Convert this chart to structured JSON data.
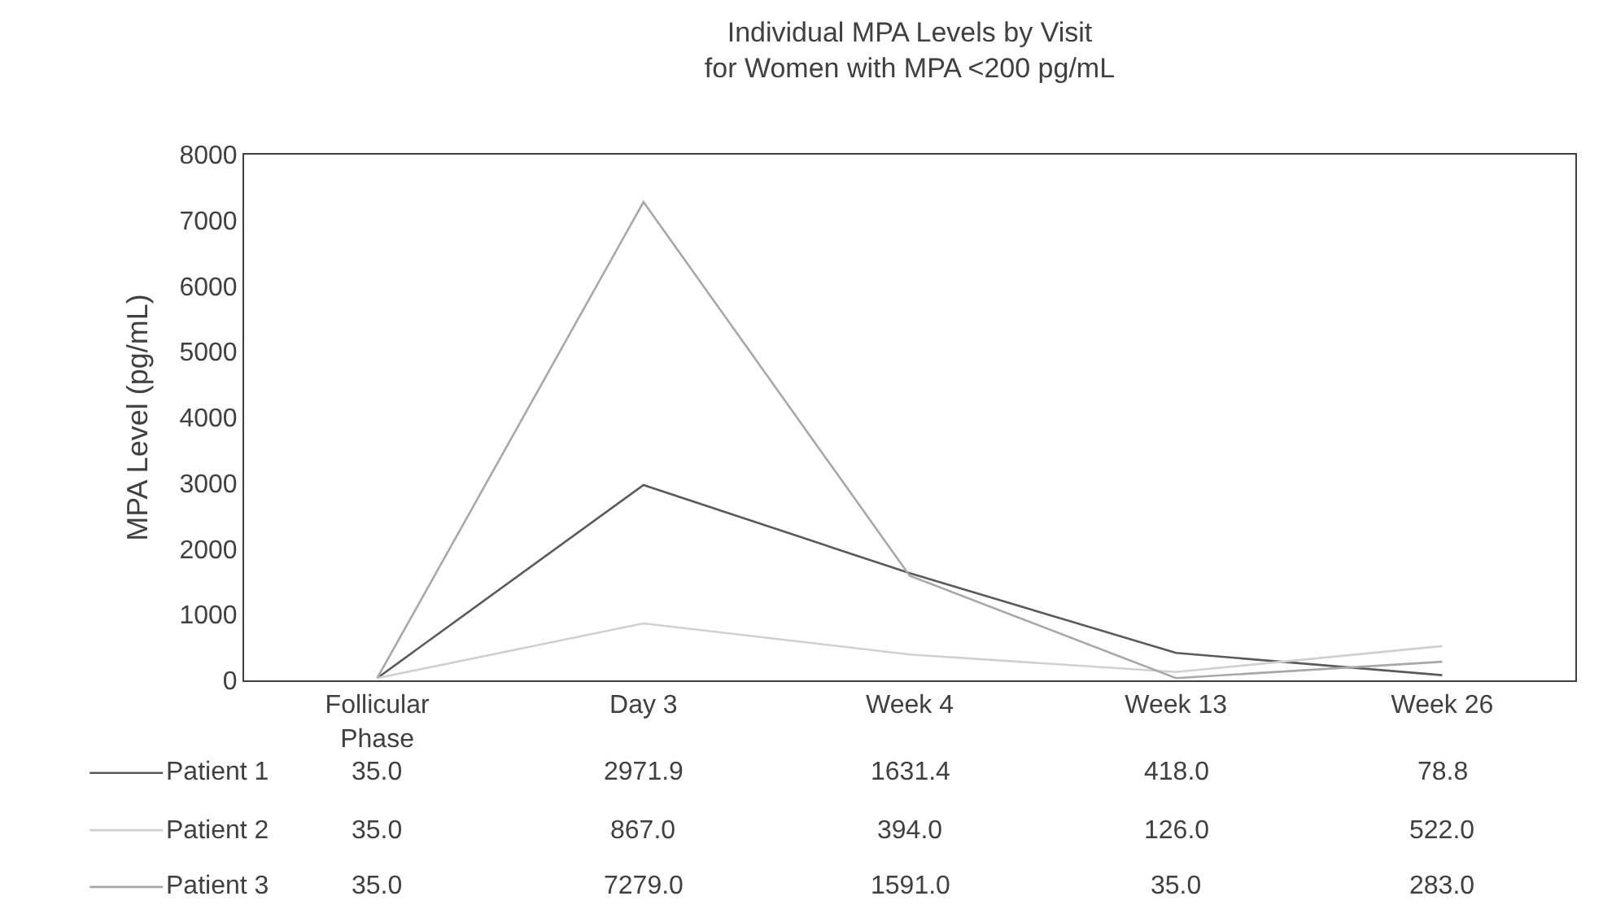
{
  "chart_data": {
    "type": "line",
    "title": "Individual MPA Levels by Visit\nfor Women with MPA <200 pg/mL",
    "ylabel": "MPA Level (pg/mL)",
    "categories": [
      "Follicular Phase",
      "Day 3",
      "Week 4",
      "Week 13",
      "Week 26"
    ],
    "series": [
      {
        "name": "Patient 1",
        "color": "#5a5a5a",
        "values": [
          35.0,
          2971.9,
          1631.4,
          418.0,
          78.8
        ],
        "value_labels": [
          "35.0",
          "2971.9",
          "1631.4",
          "418.0",
          "78.8"
        ]
      },
      {
        "name": "Patient 2",
        "color": "#d0d0d0",
        "values": [
          35.0,
          867.0,
          394.0,
          126.0,
          522.0
        ],
        "value_labels": [
          "35.0",
          "867.0",
          "394.0",
          "126.0",
          "522.0"
        ]
      },
      {
        "name": "Patient 3",
        "color": "#a8a8a8",
        "values": [
          35.0,
          7279.0,
          1591.0,
          35.0,
          283.0
        ],
        "value_labels": [
          "35.0",
          "7279.0",
          "1591.0",
          "35.0",
          "283.0"
        ]
      }
    ],
    "ylim": [
      0,
      8000
    ],
    "yticks": [
      0,
      1000,
      2000,
      3000,
      4000,
      5000,
      6000,
      7000,
      8000
    ],
    "legend": "bottom left",
    "marker": "none",
    "line_style": "solid"
  }
}
